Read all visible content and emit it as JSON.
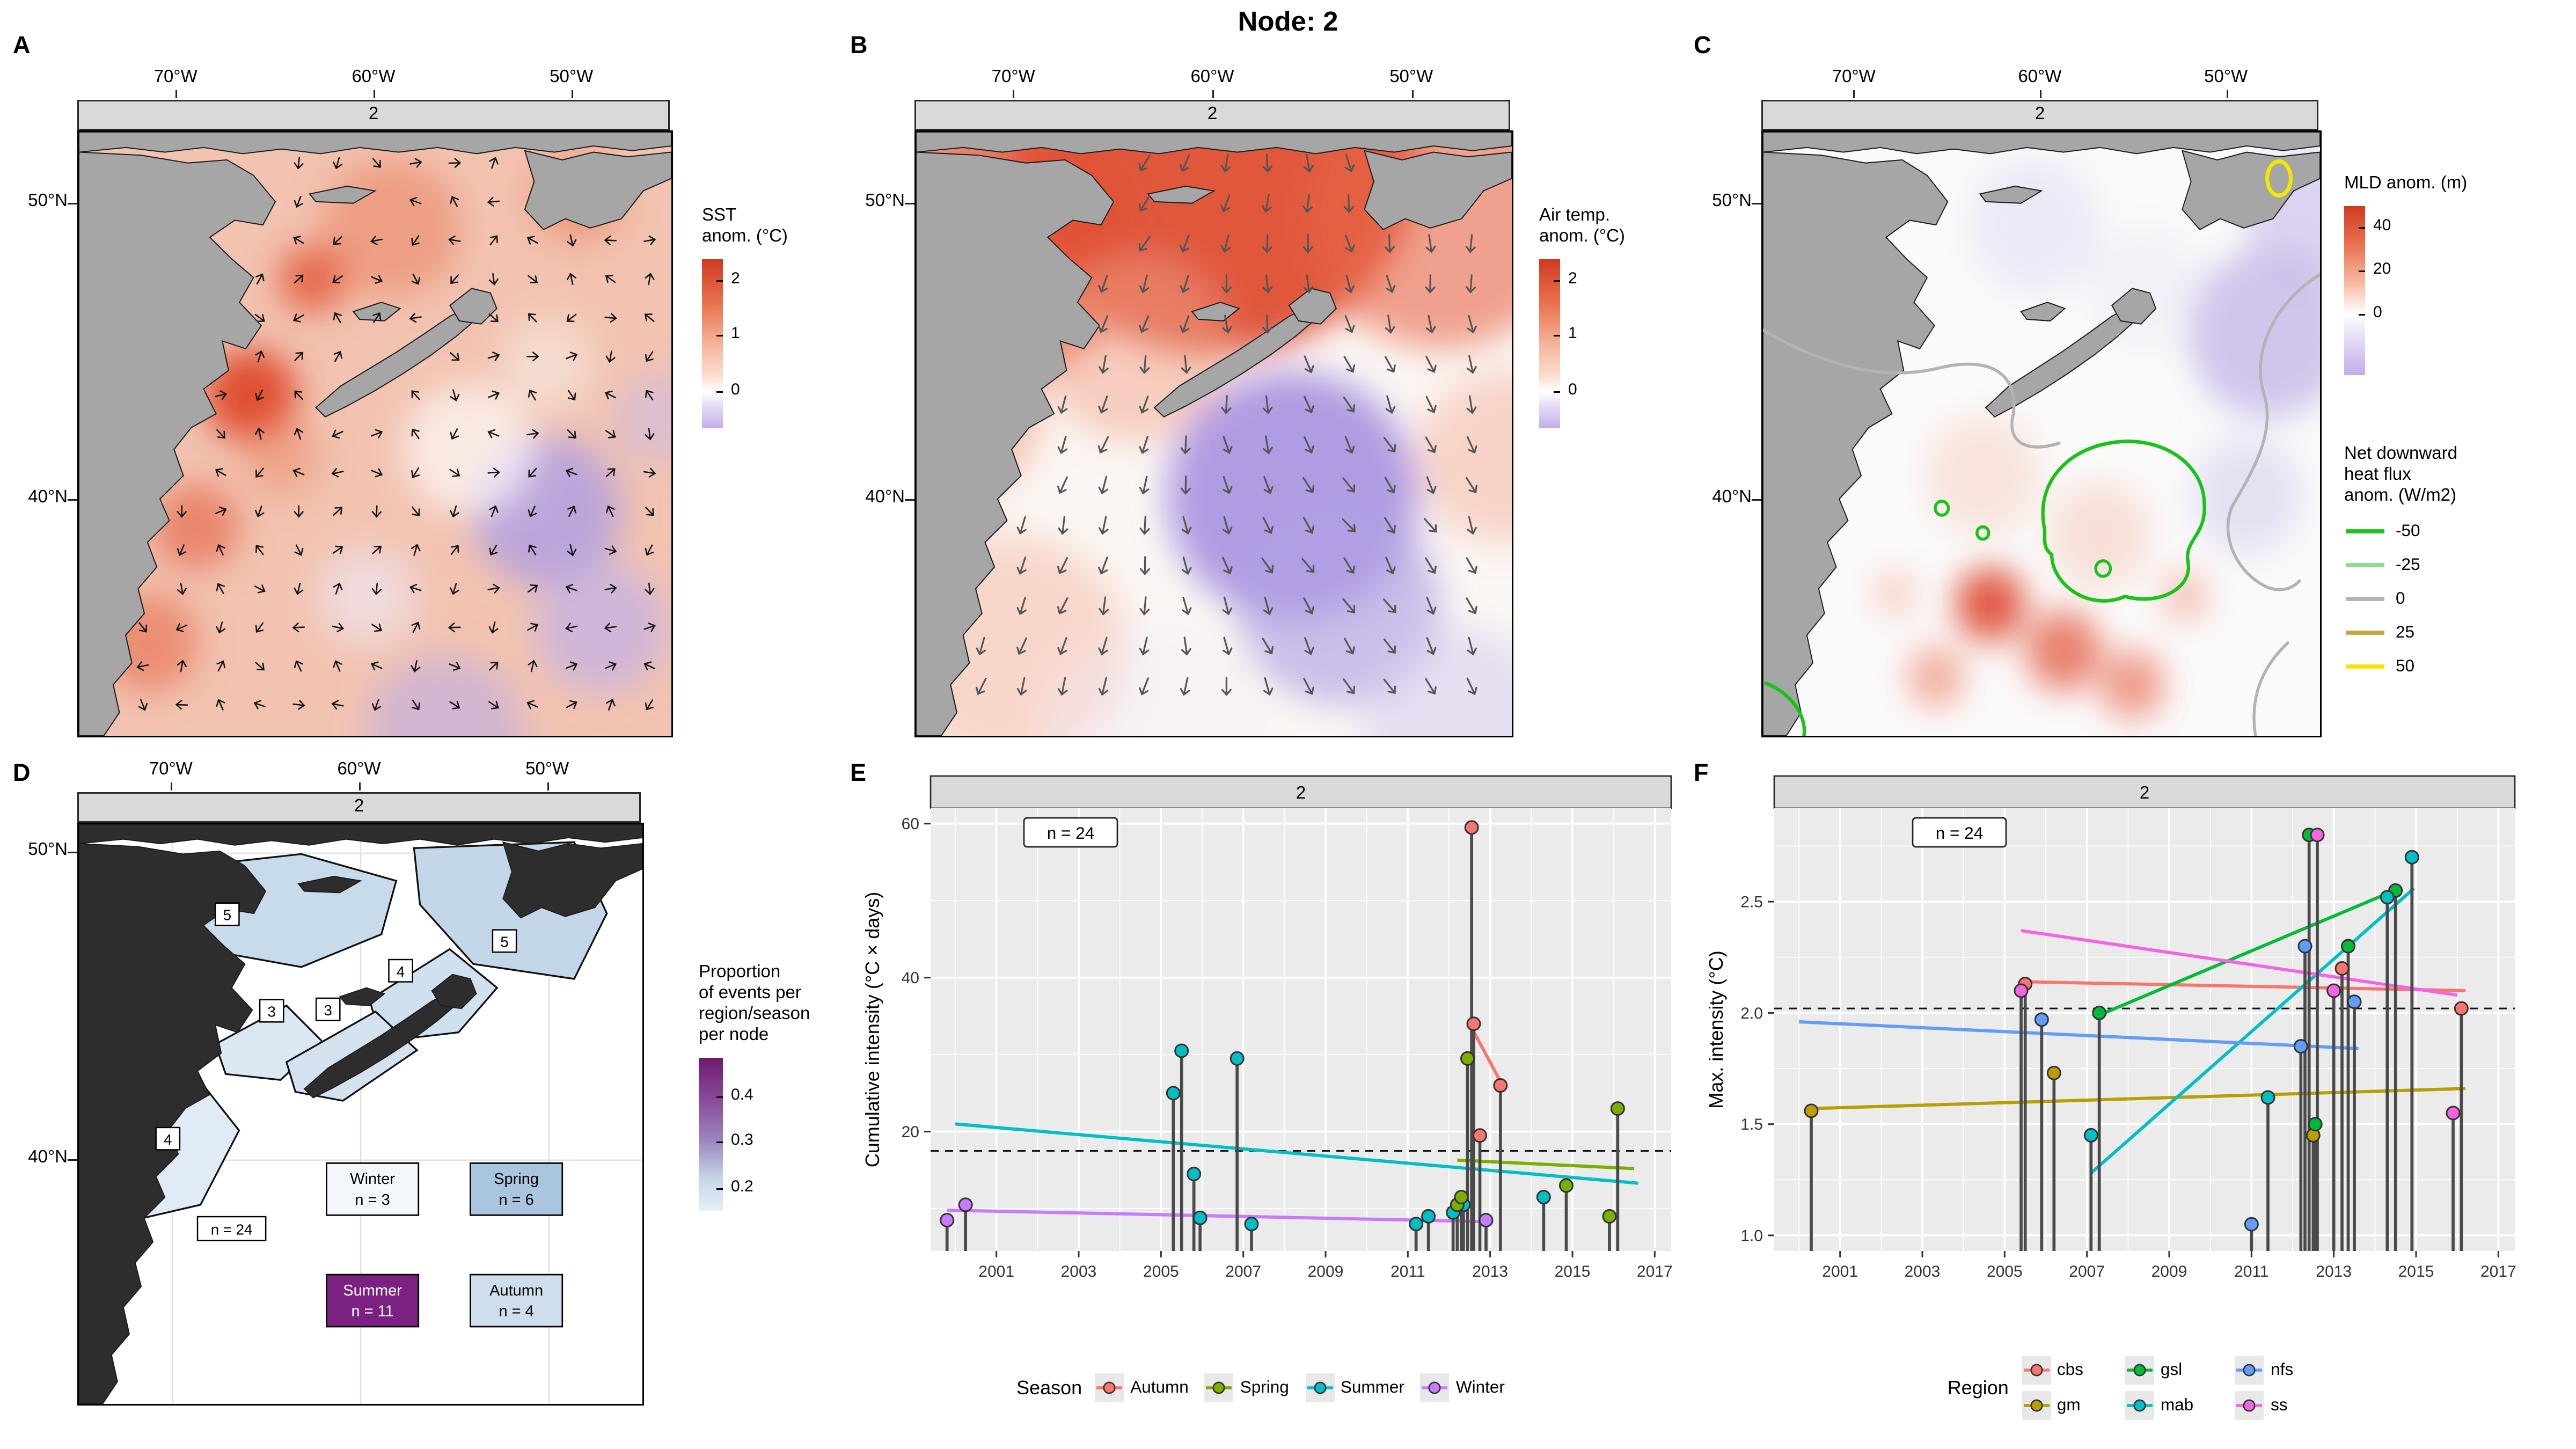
{
  "title": "Node: 2",
  "map_axes": {
    "facet": "2",
    "x_ticks": [
      "70°W",
      "60°W",
      "50°W"
    ],
    "y_ticks": [
      "50°N",
      "40°N"
    ]
  },
  "panels": {
    "A": {
      "letter": "A",
      "legend_title": [
        "SST",
        "anom. (°C)"
      ],
      "legend_ticks": [
        {
          "label": "2",
          "pos": 0.12
        },
        {
          "label": "1",
          "pos": 0.45
        },
        {
          "label": "0",
          "pos": 0.78
        }
      ]
    },
    "B": {
      "letter": "B",
      "legend_title": [
        "Air temp.",
        "anom. (°C)"
      ],
      "legend_ticks": [
        {
          "label": "2",
          "pos": 0.12
        },
        {
          "label": "1",
          "pos": 0.45
        },
        {
          "label": "0",
          "pos": 0.78
        }
      ]
    },
    "C": {
      "letter": "C",
      "legend_title": [
        "MLD anom. (m)"
      ],
      "legend_ticks": [
        {
          "label": "40",
          "pos": 0.12
        },
        {
          "label": "20",
          "pos": 0.38
        },
        {
          "label": "0",
          "pos": 0.64
        }
      ],
      "flux_legend_title": [
        "Net downward",
        "heat flux",
        "anom. (W/m2)"
      ],
      "flux_entries": [
        {
          "label": "-50",
          "color": "#19c319"
        },
        {
          "label": "-25",
          "color": "#8fdc8a"
        },
        {
          "label": "0",
          "color": "#b3b3b3"
        },
        {
          "label": "25",
          "color": "#c2a93c"
        },
        {
          "label": "50",
          "color": "#f4e800"
        }
      ]
    },
    "D": {
      "letter": "D",
      "legend_title": [
        "Proportion",
        "of events per",
        "region/season",
        "per node"
      ],
      "legend_ticks": [
        {
          "label": "0.4",
          "pos": 0.25
        },
        {
          "label": "0.3",
          "pos": 0.55
        },
        {
          "label": "0.2",
          "pos": 0.85
        }
      ],
      "n_label": "n = 24",
      "region_counts": [
        "5",
        "4",
        "3",
        "3",
        "5",
        "4"
      ],
      "season_boxes": [
        {
          "label": "Winter",
          "count": "n = 3",
          "fill": "#f2f7fb",
          "text_color": "#000000"
        },
        {
          "label": "Spring",
          "count": "n = 6",
          "fill": "#a9c6de",
          "text_color": "#000000"
        },
        {
          "label": "Summer",
          "count": "n = 11",
          "fill": "#7b2181",
          "text_color": "#ffffff"
        },
        {
          "label": "Autumn",
          "count": "n = 4",
          "fill": "#cfdeed",
          "text_color": "#000000"
        }
      ]
    },
    "E": {
      "letter": "E",
      "facet": "2",
      "n_label": "n = 24",
      "ylabel": "Cumulative intensity (°C × days)",
      "legend_title": "Season"
    },
    "F": {
      "letter": "F",
      "facet": "2",
      "n_label": "n = 24",
      "ylabel": "Max. intensity (°C)",
      "legend_title": "Region"
    }
  },
  "gradients": {
    "sst": [
      [
        "0%",
        "#cf3a21"
      ],
      [
        "25%",
        "#e96f4b"
      ],
      [
        "52%",
        "#f6b89f"
      ],
      [
        "70%",
        "#fbdfd2"
      ],
      [
        "78%",
        "#ffffff"
      ],
      [
        "90%",
        "#ddd1f2"
      ],
      [
        "100%",
        "#c3ade9"
      ]
    ],
    "mld": [
      [
        "0%",
        "#cf3a21"
      ],
      [
        "22%",
        "#e96f4b"
      ],
      [
        "45%",
        "#f6b89f"
      ],
      [
        "64%",
        "#ffffff"
      ],
      [
        "85%",
        "#d9cdf1"
      ],
      [
        "100%",
        "#c3ade9"
      ]
    ],
    "prop": [
      [
        "0%",
        "#6f1a70"
      ],
      [
        "30%",
        "#8c4f9f"
      ],
      [
        "55%",
        "#9b8ac1"
      ],
      [
        "78%",
        "#c6d2e6"
      ],
      [
        "100%",
        "#e7f0f8"
      ]
    ]
  },
  "chart_data": [
    {
      "id": "A",
      "type": "map",
      "facet": "2",
      "variable": "SST anom. (°C)",
      "colorbar_ticks": [
        2,
        1,
        0
      ]
    },
    {
      "id": "B",
      "type": "map",
      "facet": "2",
      "variable": "Air temp. anom. (°C)",
      "colorbar_ticks": [
        2,
        1,
        0
      ]
    },
    {
      "id": "C",
      "type": "map",
      "facet": "2",
      "variable": "MLD anom. (m)",
      "colorbar_ticks": [
        40,
        20,
        0
      ],
      "contour_variable": "Net downward heat flux anom. (W/m2)",
      "contour_levels": [
        -50,
        -25,
        0,
        25,
        50
      ]
    },
    {
      "id": "D",
      "type": "map",
      "facet": "2",
      "variable": "Proportion of events per region/season per node",
      "colorbar_ticks": [
        0.4,
        0.3,
        0.2
      ],
      "region_counts_shown": [
        "5",
        "4",
        "3",
        "3",
        "5",
        "4"
      ],
      "season_counts": {
        "Winter": 3,
        "Spring": 6,
        "Summer": 11,
        "Autumn": 4
      },
      "n": 24
    },
    {
      "id": "E",
      "type": "lollipop",
      "facet": "2",
      "n": 24,
      "xlim": [
        1999.4,
        2017.4
      ],
      "ylim": [
        4.5,
        62
      ],
      "x_ticks": [
        2001,
        2003,
        2005,
        2007,
        2009,
        2011,
        2013,
        2015,
        2017
      ],
      "y_ticks": [
        20,
        40,
        60
      ],
      "dashed_mean": 17.5,
      "series": [
        {
          "name": "Winter",
          "color": "#C77CFF",
          "points": [
            [
              1999.8,
              8.5
            ],
            [
              2000.25,
              10.5
            ],
            [
              2012.9,
              8.5
            ]
          ],
          "trend": [
            [
              1999.8,
              9.8
            ],
            [
              2013.0,
              8.3
            ]
          ]
        },
        {
          "name": "Summer",
          "color": "#00BFC4",
          "points": [
            [
              2005.3,
              25
            ],
            [
              2005.5,
              30.5
            ],
            [
              2005.8,
              14.5
            ],
            [
              2005.95,
              8.8
            ],
            [
              2006.85,
              29.5
            ],
            [
              2007.2,
              8
            ],
            [
              2011.2,
              8
            ],
            [
              2011.5,
              9
            ],
            [
              2012.1,
              9.5
            ],
            [
              2012.35,
              10.5
            ],
            [
              2014.3,
              11.5
            ]
          ],
          "trend": [
            [
              2000.0,
              21.0
            ],
            [
              2016.6,
              13.3
            ]
          ]
        },
        {
          "name": "Spring",
          "color": "#7CAE00",
          "points": [
            [
              2012.2,
              10.5
            ],
            [
              2012.3,
              11.5
            ],
            [
              2012.45,
              29.5
            ],
            [
              2014.85,
              13
            ],
            [
              2015.9,
              9
            ],
            [
              2016.1,
              23
            ]
          ],
          "trend": [
            [
              2012.2,
              16.3
            ],
            [
              2016.5,
              15.2
            ]
          ]
        },
        {
          "name": "Autumn",
          "color": "#F8766D",
          "points": [
            [
              2012.55,
              59.5
            ],
            [
              2012.6,
              34
            ],
            [
              2012.75,
              19.5
            ],
            [
              2013.25,
              26
            ]
          ],
          "trend": [
            [
              2012.55,
              33.5
            ],
            [
              2013.3,
              26.0
            ]
          ]
        }
      ],
      "legend": [
        "Autumn",
        "Spring",
        "Summer",
        "Winter"
      ]
    },
    {
      "id": "F",
      "type": "lollipop",
      "facet": "2",
      "n": 24,
      "xlim": [
        1999.4,
        2017.4
      ],
      "ylim": [
        0.93,
        2.92
      ],
      "x_ticks": [
        2001,
        2003,
        2005,
        2007,
        2009,
        2011,
        2013,
        2015,
        2017
      ],
      "y_ticks": [
        1.0,
        1.5,
        2.0,
        2.5
      ],
      "dashed_mean": 2.02,
      "series": [
        {
          "name": "cbs",
          "color": "#F8766D",
          "points": [
            [
              2005.5,
              2.13
            ],
            [
              2013.2,
              2.2
            ],
            [
              2016.1,
              2.02
            ]
          ],
          "trend": [
            [
              2005.5,
              2.14
            ],
            [
              2016.2,
              2.1
            ]
          ]
        },
        {
          "name": "gm",
          "color": "#B79F00",
          "points": [
            [
              2000.3,
              1.56
            ],
            [
              2006.2,
              1.73
            ],
            [
              2012.5,
              1.45
            ]
          ],
          "trend": [
            [
              2000.3,
              1.57
            ],
            [
              2016.2,
              1.66
            ]
          ]
        },
        {
          "name": "gsl",
          "color": "#00BA38",
          "points": [
            [
              2007.3,
              2.0
            ],
            [
              2012.4,
              2.8
            ],
            [
              2012.55,
              1.5
            ],
            [
              2013.35,
              2.3
            ],
            [
              2014.5,
              2.55
            ]
          ],
          "trend": [
            [
              2007.3,
              1.99
            ],
            [
              2014.6,
              2.56
            ]
          ]
        },
        {
          "name": "mab",
          "color": "#00BFC4",
          "points": [
            [
              2007.1,
              1.45
            ],
            [
              2011.4,
              1.62
            ],
            [
              2014.3,
              2.52
            ],
            [
              2014.9,
              2.7
            ]
          ],
          "trend": [
            [
              2007.1,
              1.28
            ],
            [
              2014.95,
              2.56
            ]
          ]
        },
        {
          "name": "nfs",
          "color": "#619CFF",
          "points": [
            [
              2005.9,
              1.97
            ],
            [
              2011.0,
              1.05
            ],
            [
              2012.2,
              1.85
            ],
            [
              2012.3,
              2.3
            ],
            [
              2013.5,
              2.05
            ]
          ],
          "trend": [
            [
              2000.0,
              1.96
            ],
            [
              2013.6,
              1.84
            ]
          ]
        },
        {
          "name": "ss",
          "color": "#F564E3",
          "points": [
            [
              2005.4,
              2.1
            ],
            [
              2012.6,
              2.8
            ],
            [
              2013.0,
              2.1
            ],
            [
              2015.9,
              1.55
            ]
          ],
          "trend": [
            [
              2005.4,
              2.37
            ],
            [
              2016.0,
              2.08
            ]
          ]
        }
      ],
      "legend": [
        "cbs",
        "gm",
        "gsl",
        "mab",
        "nfs",
        "ss"
      ]
    }
  ]
}
